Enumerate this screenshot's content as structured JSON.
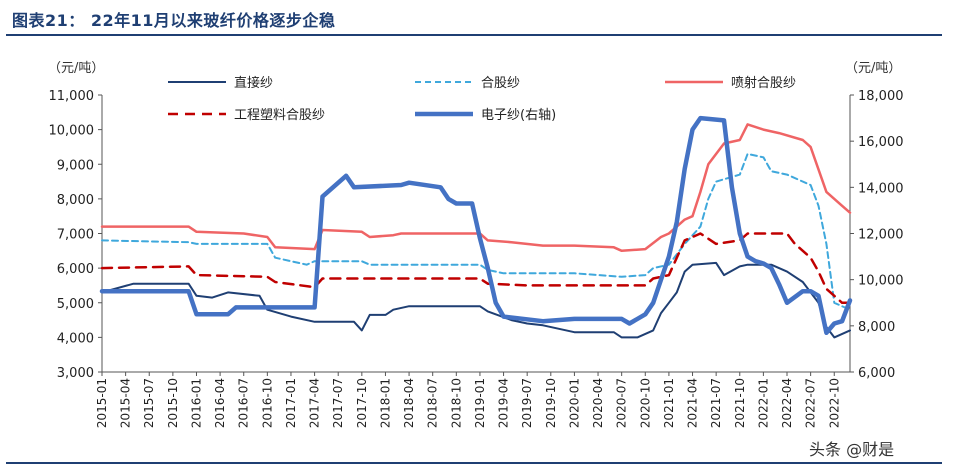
{
  "title": "图表21： 22年11月以来玻纤价格逐步企稳",
  "watermark": "头条 @财是",
  "chart_data": {
    "type": "line",
    "title": "图表21： 22年11月以来玻纤价格逐步企稳",
    "y_left_unit": "（元/吨）",
    "y_right_unit": "（元/吨）",
    "ylim_left": [
      3000,
      11000
    ],
    "ylim_right": [
      6000,
      18000
    ],
    "yticks_left": [
      "3,000",
      "4,000",
      "5,000",
      "6,000",
      "7,000",
      "8,000",
      "9,000",
      "10,000",
      "11,000"
    ],
    "yticks_right": [
      "6,000",
      "8,000",
      "10,000",
      "12,000",
      "14,000",
      "16,000",
      "18,000"
    ],
    "x_start": "2015-01",
    "x_end": "2022-12",
    "xticks": [
      "2015-01",
      "2015-04",
      "2015-07",
      "2015-10",
      "2016-01",
      "2016-04",
      "2016-07",
      "2016-10",
      "2017-01",
      "2017-04",
      "2017-07",
      "2017-10",
      "2018-01",
      "2018-04",
      "2018-07",
      "2018-10",
      "2019-01",
      "2019-04",
      "2019-07",
      "2019-10",
      "2020-01",
      "2020-04",
      "2020-07",
      "2020-10",
      "2021-01",
      "2021-04",
      "2021-07",
      "2021-10",
      "2022-01",
      "2022-04",
      "2022-07",
      "2022-10"
    ],
    "grid": false,
    "legend_position": "top",
    "series": [
      {
        "name": "直接纱",
        "axis": "left",
        "color": "#1f3f73",
        "style": "solid",
        "width": 2,
        "points": [
          [
            "2015-01",
            5300
          ],
          [
            "2015-05",
            5550
          ],
          [
            "2015-12",
            5550
          ],
          [
            "2016-01",
            5200
          ],
          [
            "2016-03",
            5150
          ],
          [
            "2016-05",
            5300
          ],
          [
            "2016-09",
            5200
          ],
          [
            "2016-10",
            4800
          ],
          [
            "2017-01",
            4600
          ],
          [
            "2017-04",
            4450
          ],
          [
            "2017-09",
            4450
          ],
          [
            "2017-10",
            4200
          ],
          [
            "2017-11",
            4650
          ],
          [
            "2018-01",
            4650
          ],
          [
            "2018-02",
            4800
          ],
          [
            "2018-04",
            4900
          ],
          [
            "2019-01",
            4900
          ],
          [
            "2019-02",
            4750
          ],
          [
            "2019-05",
            4500
          ],
          [
            "2019-07",
            4400
          ],
          [
            "2019-09",
            4350
          ],
          [
            "2020-01",
            4150
          ],
          [
            "2020-06",
            4150
          ],
          [
            "2020-07",
            4000
          ],
          [
            "2020-09",
            4000
          ],
          [
            "2020-11",
            4200
          ],
          [
            "2020-12",
            4700
          ],
          [
            "2021-01",
            5000
          ],
          [
            "2021-02",
            5300
          ],
          [
            "2021-03",
            5900
          ],
          [
            "2021-04",
            6100
          ],
          [
            "2021-07",
            6150
          ],
          [
            "2021-08",
            5800
          ],
          [
            "2021-10",
            6050
          ],
          [
            "2021-11",
            6100
          ],
          [
            "2022-02",
            6100
          ],
          [
            "2022-04",
            5900
          ],
          [
            "2022-06",
            5600
          ],
          [
            "2022-08",
            5000
          ],
          [
            "2022-09",
            4300
          ],
          [
            "2022-10",
            4000
          ],
          [
            "2022-12",
            4200
          ]
        ]
      },
      {
        "name": "合股纱",
        "axis": "left",
        "color": "#3fa8dc",
        "style": "dashed",
        "width": 2,
        "points": [
          [
            "2015-01",
            6800
          ],
          [
            "2015-12",
            6750
          ],
          [
            "2016-01",
            6700
          ],
          [
            "2016-10",
            6700
          ],
          [
            "2016-11",
            6300
          ],
          [
            "2017-03",
            6100
          ],
          [
            "2017-04",
            6200
          ],
          [
            "2017-10",
            6200
          ],
          [
            "2017-11",
            6100
          ],
          [
            "2018-01",
            6100
          ],
          [
            "2019-01",
            6100
          ],
          [
            "2019-02",
            5950
          ],
          [
            "2019-04",
            5850
          ],
          [
            "2020-01",
            5850
          ],
          [
            "2020-07",
            5750
          ],
          [
            "2020-10",
            5800
          ],
          [
            "2020-11",
            6000
          ],
          [
            "2021-01",
            6100
          ],
          [
            "2021-03",
            6700
          ],
          [
            "2021-05",
            7200
          ],
          [
            "2021-06",
            8000
          ],
          [
            "2021-07",
            8500
          ],
          [
            "2021-10",
            8700
          ],
          [
            "2021-11",
            9300
          ],
          [
            "2022-01",
            9200
          ],
          [
            "2022-02",
            8800
          ],
          [
            "2022-04",
            8700
          ],
          [
            "2022-07",
            8400
          ],
          [
            "2022-08",
            7800
          ],
          [
            "2022-09",
            6700
          ],
          [
            "2022-10",
            5000
          ],
          [
            "2022-12",
            4800
          ]
        ]
      },
      {
        "name": "喷射合股纱",
        "axis": "left",
        "color": "#ef6465",
        "style": "solid",
        "width": 2.5,
        "points": [
          [
            "2015-01",
            7200
          ],
          [
            "2015-12",
            7200
          ],
          [
            "2016-01",
            7050
          ],
          [
            "2016-07",
            7000
          ],
          [
            "2016-10",
            6900
          ],
          [
            "2016-11",
            6600
          ],
          [
            "2017-04",
            6550
          ],
          [
            "2017-05",
            7100
          ],
          [
            "2017-10",
            7050
          ],
          [
            "2017-11",
            6900
          ],
          [
            "2018-02",
            6950
          ],
          [
            "2018-03",
            7000
          ],
          [
            "2019-01",
            7000
          ],
          [
            "2019-02",
            6800
          ],
          [
            "2019-05",
            6750
          ],
          [
            "2019-09",
            6650
          ],
          [
            "2020-01",
            6650
          ],
          [
            "2020-06",
            6600
          ],
          [
            "2020-07",
            6500
          ],
          [
            "2020-10",
            6550
          ],
          [
            "2020-12",
            6900
          ],
          [
            "2021-01",
            7000
          ],
          [
            "2021-03",
            7400
          ],
          [
            "2021-04",
            7500
          ],
          [
            "2021-05",
            8200
          ],
          [
            "2021-06",
            9000
          ],
          [
            "2021-08",
            9600
          ],
          [
            "2021-10",
            9700
          ],
          [
            "2021-11",
            10150
          ],
          [
            "2022-01",
            10000
          ],
          [
            "2022-03",
            9900
          ],
          [
            "2022-06",
            9700
          ],
          [
            "2022-07",
            9500
          ],
          [
            "2022-09",
            8200
          ],
          [
            "2022-11",
            7800
          ],
          [
            "2022-12",
            7600
          ]
        ]
      },
      {
        "name": "工程塑料合股纱",
        "axis": "left",
        "color": "#c00000",
        "style": "dashed-thick",
        "width": 2.5,
        "points": [
          [
            "2015-01",
            6000
          ],
          [
            "2015-12",
            6050
          ],
          [
            "2016-01",
            5800
          ],
          [
            "2016-10",
            5750
          ],
          [
            "2016-11",
            5600
          ],
          [
            "2017-04",
            5450
          ],
          [
            "2017-05",
            5700
          ],
          [
            "2017-10",
            5700
          ],
          [
            "2018-01",
            5700
          ],
          [
            "2019-01",
            5700
          ],
          [
            "2019-02",
            5550
          ],
          [
            "2019-07",
            5500
          ],
          [
            "2020-01",
            5500
          ],
          [
            "2020-10",
            5500
          ],
          [
            "2020-11",
            5700
          ],
          [
            "2021-01",
            5800
          ],
          [
            "2021-02",
            6300
          ],
          [
            "2021-03",
            6800
          ],
          [
            "2021-05",
            7000
          ],
          [
            "2021-07",
            6700
          ],
          [
            "2021-10",
            6800
          ],
          [
            "2021-11",
            7000
          ],
          [
            "2022-04",
            7000
          ],
          [
            "2022-05",
            6700
          ],
          [
            "2022-07",
            6300
          ],
          [
            "2022-08",
            5900
          ],
          [
            "2022-09",
            5400
          ],
          [
            "2022-11",
            5000
          ],
          [
            "2022-12",
            5000
          ]
        ]
      },
      {
        "name": "电子纱(右轴)",
        "axis": "right",
        "color": "#4472c4",
        "style": "solid",
        "width": 4.5,
        "points": [
          [
            "2015-01",
            9500
          ],
          [
            "2015-12",
            9500
          ],
          [
            "2016-01",
            8500
          ],
          [
            "2016-05",
            8500
          ],
          [
            "2016-06",
            8800
          ],
          [
            "2017-04",
            8800
          ],
          [
            "2017-05",
            13600
          ],
          [
            "2017-08",
            14500
          ],
          [
            "2017-09",
            14000
          ],
          [
            "2018-03",
            14100
          ],
          [
            "2018-04",
            14200
          ],
          [
            "2018-08",
            14000
          ],
          [
            "2018-09",
            13500
          ],
          [
            "2018-10",
            13300
          ],
          [
            "2018-12",
            13300
          ],
          [
            "2019-01",
            11800
          ],
          [
            "2019-02",
            10500
          ],
          [
            "2019-03",
            9000
          ],
          [
            "2019-04",
            8400
          ],
          [
            "2019-09",
            8200
          ],
          [
            "2020-01",
            8300
          ],
          [
            "2020-07",
            8300
          ],
          [
            "2020-08",
            8100
          ],
          [
            "2020-10",
            8500
          ],
          [
            "2020-11",
            9000
          ],
          [
            "2020-12",
            10000
          ],
          [
            "2021-01",
            11000
          ],
          [
            "2021-02",
            12500
          ],
          [
            "2021-03",
            14800
          ],
          [
            "2021-04",
            16500
          ],
          [
            "2021-05",
            17000
          ],
          [
            "2021-08",
            16900
          ],
          [
            "2021-09",
            14000
          ],
          [
            "2021-10",
            12000
          ],
          [
            "2021-11",
            11000
          ],
          [
            "2021-12",
            10800
          ],
          [
            "2022-01",
            10700
          ],
          [
            "2022-02",
            10500
          ],
          [
            "2022-03",
            9800
          ],
          [
            "2022-04",
            9000
          ],
          [
            "2022-06",
            9500
          ],
          [
            "2022-07",
            9500
          ],
          [
            "2022-08",
            9300
          ],
          [
            "2022-09",
            7700
          ],
          [
            "2022-10",
            8100
          ],
          [
            "2022-11",
            8200
          ],
          [
            "2022-12",
            9100
          ]
        ]
      }
    ]
  }
}
